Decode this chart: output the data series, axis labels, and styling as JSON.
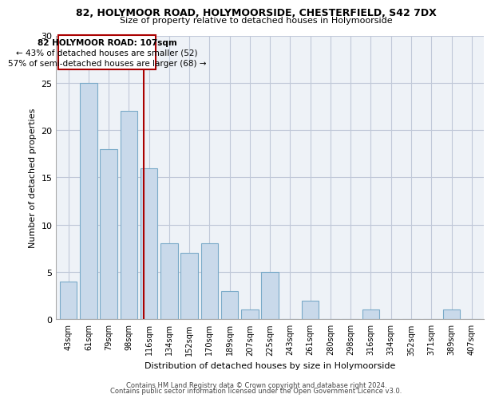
{
  "title": "82, HOLYMOOR ROAD, HOLYMOORSIDE, CHESTERFIELD, S42 7DX",
  "subtitle": "Size of property relative to detached houses in Holymoorside",
  "xlabel": "Distribution of detached houses by size in Holymoorside",
  "ylabel": "Number of detached properties",
  "footer1": "Contains HM Land Registry data © Crown copyright and database right 2024.",
  "footer2": "Contains public sector information licensed under the Open Government Licence v3.0.",
  "categories": [
    "43sqm",
    "61sqm",
    "79sqm",
    "98sqm",
    "116sqm",
    "134sqm",
    "152sqm",
    "170sqm",
    "189sqm",
    "207sqm",
    "225sqm",
    "243sqm",
    "261sqm",
    "280sqm",
    "298sqm",
    "316sqm",
    "334sqm",
    "352sqm",
    "371sqm",
    "389sqm",
    "407sqm"
  ],
  "values": [
    4,
    25,
    18,
    22,
    16,
    8,
    7,
    8,
    3,
    1,
    5,
    0,
    2,
    0,
    0,
    1,
    0,
    0,
    0,
    1,
    0
  ],
  "bar_color": "#c9d9ea",
  "bar_edge_color": "#7aaac8",
  "grid_color": "#c0c8d8",
  "annotation_line_color": "#aa0000",
  "annotation_box_color": "#aa0000",
  "annotation_text1": "82 HOLYMOOR ROAD: 107sqm",
  "annotation_text2": "← 43% of detached houses are smaller (52)",
  "annotation_text3": "57% of semi-detached houses are larger (68) →",
  "vline_x": 3.72,
  "ylim": [
    0,
    30
  ],
  "yticks": [
    0,
    5,
    10,
    15,
    20,
    25,
    30
  ],
  "background_color": "#eef2f7"
}
